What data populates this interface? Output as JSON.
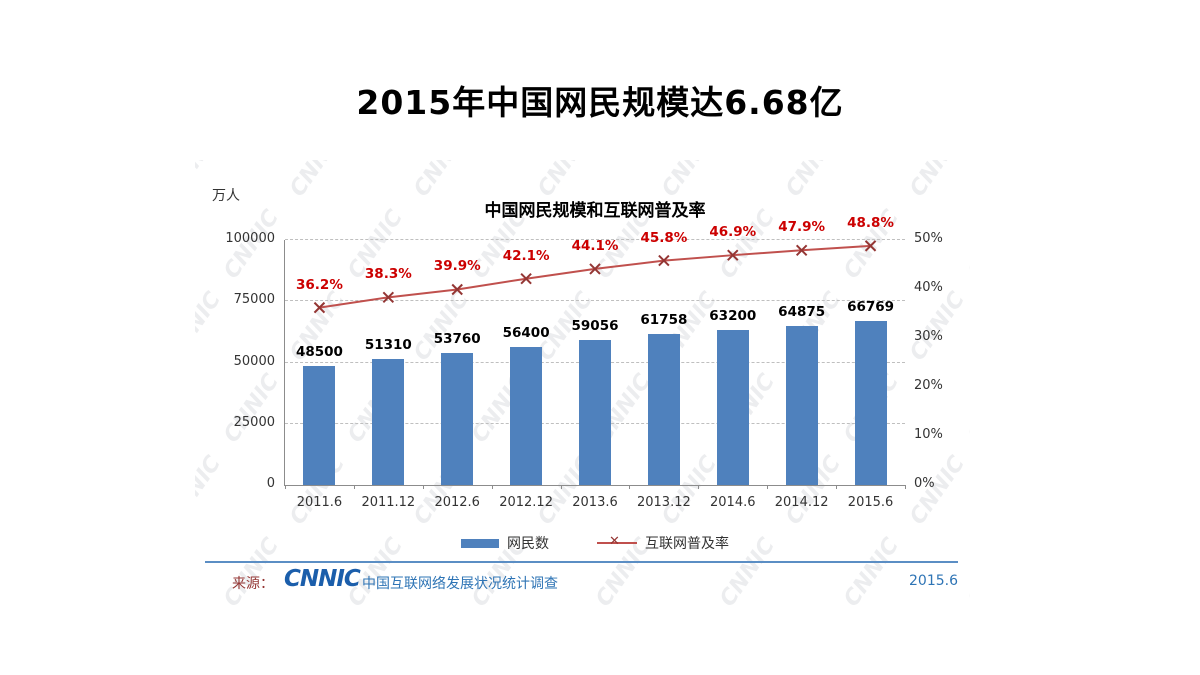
{
  "slide": {
    "title": "2015年中国网民规模达6.68亿",
    "watermark_text": "CNNIC",
    "footer": {
      "source_prefix": "来源：",
      "logo_text": "CNNIC",
      "source_text": "中国互联网络发展状况统计调查",
      "date": "2015.6"
    }
  },
  "chart_data": {
    "type": "bar+line",
    "title": "中国网民规模和互联网普及率",
    "unit_label": "万人",
    "categories": [
      "2011.6",
      "2011.12",
      "2012.6",
      "2012.12",
      "2013.6",
      "2013.12",
      "2014.6",
      "2014.12",
      "2015.6"
    ],
    "series": [
      {
        "name": "网民数",
        "type": "bar",
        "values": [
          48500,
          51310,
          53760,
          56400,
          59056,
          61758,
          63200,
          64875,
          66769
        ],
        "color": "#4f81bd",
        "axis": "left"
      },
      {
        "name": "互联网普及率",
        "type": "line",
        "values": [
          36.2,
          38.3,
          39.9,
          42.1,
          44.1,
          45.8,
          46.9,
          47.9,
          48.8
        ],
        "color": "#c0504d",
        "marker": "x",
        "label_format": "percent",
        "axis": "right"
      }
    ],
    "left_axis": {
      "ticks": [
        "0",
        "25000",
        "50000",
        "75000",
        "100000"
      ],
      "min": 0,
      "max": 100000
    },
    "right_axis": {
      "ticks": [
        "0%",
        "10%",
        "20%",
        "30%",
        "40%",
        "50%"
      ],
      "min": 0,
      "max": 50
    },
    "grid": "dashed horizontal",
    "legend_position": "bottom"
  }
}
